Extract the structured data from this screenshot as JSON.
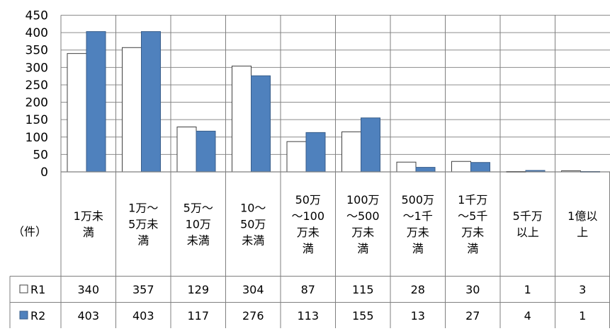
{
  "chart_data": {
    "type": "bar",
    "unit_label": "（件）",
    "ylim": [
      0,
      450
    ],
    "yticks": [
      0,
      50,
      100,
      150,
      200,
      250,
      300,
      350,
      400,
      450
    ],
    "grid": true,
    "legend_placement": "data-table-left",
    "categories": [
      [
        "1万未",
        "満"
      ],
      [
        "1万～",
        "5万未",
        "満"
      ],
      [
        "5万～",
        "10万",
        "未満"
      ],
      [
        "10～",
        "50万",
        "未満"
      ],
      [
        "50万",
        "～100",
        "万未",
        "満"
      ],
      [
        "100万",
        "～500",
        "万未",
        "満"
      ],
      [
        "500万",
        "～1千",
        "万未",
        "満"
      ],
      [
        "1千万",
        "～5千",
        "万未",
        "満"
      ],
      [
        "5千万",
        "以上"
      ],
      [
        "1億以",
        "上"
      ]
    ],
    "series": [
      {
        "name": "R1",
        "color": "#ffffff",
        "values": [
          340,
          357,
          129,
          304,
          87,
          115,
          28,
          30,
          1,
          3
        ]
      },
      {
        "name": "R2",
        "color": "#4f81bd",
        "values": [
          403,
          403,
          117,
          276,
          113,
          155,
          13,
          27,
          4,
          1
        ]
      }
    ]
  }
}
